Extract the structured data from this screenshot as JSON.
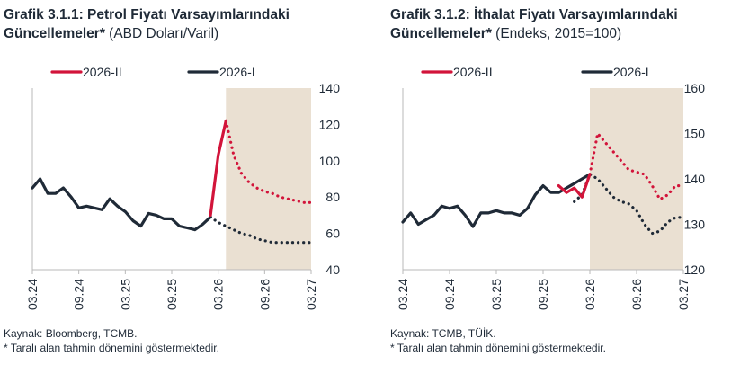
{
  "chart_data": [
    {
      "type": "line",
      "title": "Grafik 3.1.1: Petrol Fiyatı Varsayımlarındaki Güncellemeler*",
      "subtitle": "(ABD Doları/Varil)",
      "x_ticks": [
        "03.24",
        "09.24",
        "03.25",
        "09.25",
        "03.26",
        "09.26",
        "03.27"
      ],
      "x_range": [
        "03.24",
        "03.27"
      ],
      "ylim": [
        40,
        140
      ],
      "y_ticks": [
        "40",
        "60",
        "80",
        "100",
        "120",
        "140"
      ],
      "y_axis_side": "right",
      "grid": false,
      "legend_position": "top",
      "forecast_shading": {
        "from": "04.26",
        "to": "03.27"
      },
      "series": [
        {
          "name": "2026-II",
          "color": "#d2143a",
          "actual": {
            "x": [
              "02.26",
              "03.26",
              "04.26"
            ],
            "y": [
              70,
              103,
              122
            ]
          },
          "forecast": {
            "x": [
              "04.26",
              "05.26",
              "06.26",
              "07.26",
              "08.26",
              "09.26",
              "10.26",
              "11.26",
              "12.26",
              "01.27",
              "02.27",
              "03.27"
            ],
            "y": [
              122,
              103,
              93,
              88,
              85,
              83,
              82,
              80,
              79,
              78,
              77,
              77
            ]
          }
        },
        {
          "name": "2026-I",
          "color": "#1f2a37",
          "actual": {
            "x": [
              "03.24",
              "04.24",
              "05.24",
              "06.24",
              "07.24",
              "08.24",
              "09.24",
              "10.24",
              "11.24",
              "12.24",
              "01.25",
              "02.25",
              "03.25",
              "04.25",
              "05.25",
              "06.25",
              "07.25",
              "08.25",
              "09.25",
              "10.25",
              "11.25",
              "12.25",
              "01.26",
              "02.26"
            ],
            "y": [
              85,
              90,
              82,
              82,
              85,
              80,
              74,
              75,
              74,
              73,
              79,
              75,
              72,
              67,
              64,
              71,
              70,
              68,
              68,
              64,
              63,
              62,
              65,
              69
            ]
          },
          "forecast": {
            "x": [
              "02.26",
              "03.26",
              "04.26",
              "05.26",
              "06.26",
              "07.26",
              "08.26",
              "09.26",
              "10.26",
              "11.26",
              "12.26",
              "01.27",
              "02.27",
              "03.27"
            ],
            "y": [
              69,
              66,
              64,
              62,
              60,
              59,
              57,
              56,
              55,
              55,
              55,
              55,
              55,
              55
            ]
          }
        }
      ]
    },
    {
      "type": "line",
      "title": "Grafik 3.1.2: İthalat Fiyatı Varsayımlarındaki Güncellemeler*",
      "subtitle": "(Endeks, 2015=100)",
      "x_ticks": [
        "03.24",
        "09.24",
        "03.25",
        "09.25",
        "03.26",
        "09.26",
        "03.27"
      ],
      "x_range": [
        "03.24",
        "03.27"
      ],
      "ylim": [
        120,
        160
      ],
      "y_ticks": [
        "120",
        "130",
        "140",
        "150",
        "160"
      ],
      "y_axis_side": "right",
      "grid": false,
      "legend_position": "top",
      "forecast_shading": {
        "from": "03.26",
        "to": "03.27"
      },
      "series": [
        {
          "name": "2026-II",
          "color": "#d2143a",
          "actual": {
            "x": [
              "11.25",
              "12.25",
              "01.26",
              "02.26",
              "03.26"
            ],
            "y": [
              138.5,
              137,
              138,
              136,
              141
            ]
          },
          "forecast": {
            "x": [
              "03.26",
              "04.26",
              "05.26",
              "06.26",
              "07.26",
              "08.26",
              "09.26",
              "10.26",
              "11.26",
              "12.26",
              "01.27",
              "02.27",
              "03.27"
            ],
            "y": [
              141,
              150,
              148,
              146,
              144,
              142,
              141.5,
              141,
              138.5,
              135.5,
              136.5,
              138.5,
              138.5
            ]
          }
        },
        {
          "name": "2026-I",
          "color": "#1f2a37",
          "actual": {
            "x": [
              "03.24",
              "04.24",
              "05.24",
              "06.24",
              "07.24",
              "08.24",
              "09.24",
              "10.24",
              "11.24",
              "12.24",
              "01.25",
              "02.25",
              "03.25",
              "04.25",
              "05.25",
              "06.25",
              "07.25",
              "08.25",
              "09.25",
              "10.25",
              "11.25",
              "12.25",
              "01.26",
              "02.26",
              "03.26"
            ],
            "y": [
              130.5,
              132.5,
              130,
              131,
              132,
              134,
              133.5,
              134,
              132,
              129.5,
              132.5,
              132.5,
              133,
              132.5,
              132.5,
              132,
              133.5,
              136.5,
              138.5,
              137,
              137,
              138,
              139,
              140,
              141
            ]
          },
          "forecast": {
            "x": [
              "01.26",
              "02.26",
              "03.26",
              "04.26",
              "05.26",
              "06.26",
              "07.26",
              "08.26",
              "09.26",
              "10.26",
              "11.26",
              "12.26",
              "01.27",
              "02.27",
              "03.27"
            ],
            "y": [
              135,
              136.5,
              141,
              140,
              138,
              136,
              135,
              134.5,
              133,
              130,
              128,
              128.5,
              130.5,
              131.5,
              131.5
            ]
          }
        }
      ]
    }
  ],
  "panels": [
    {
      "title_bold": "Grafik 3.1.1: Petrol Fiyatı Varsayımlarındaki Güncellemeler*",
      "title_line1": "Grafik 3.1.1: Petrol Fiyatı Varsayımlarındaki",
      "title_line2_bold": "Güncellemeler*",
      "title_line2_sub": "(ABD Doları/Varil)",
      "source": "Kaynak: Bloomberg, TCMB.",
      "note": "* Taralı alan tahmin dönemini göstermektedir."
    },
    {
      "title_line1": "Grafik 3.1.2: İthalat Fiyatı Varsayımlarındaki",
      "title_line2_bold": "Güncellemeler*",
      "title_line2_sub": "(Endeks, 2015=100)",
      "source": "Kaynak: TCMB, TÜİK.",
      "note": "* Taralı alan tahmin dönemini göstermektedir."
    }
  ],
  "colors": {
    "shade": "#eae0d2",
    "axis": "#b9b9b9",
    "text": "#1f2a37"
  }
}
